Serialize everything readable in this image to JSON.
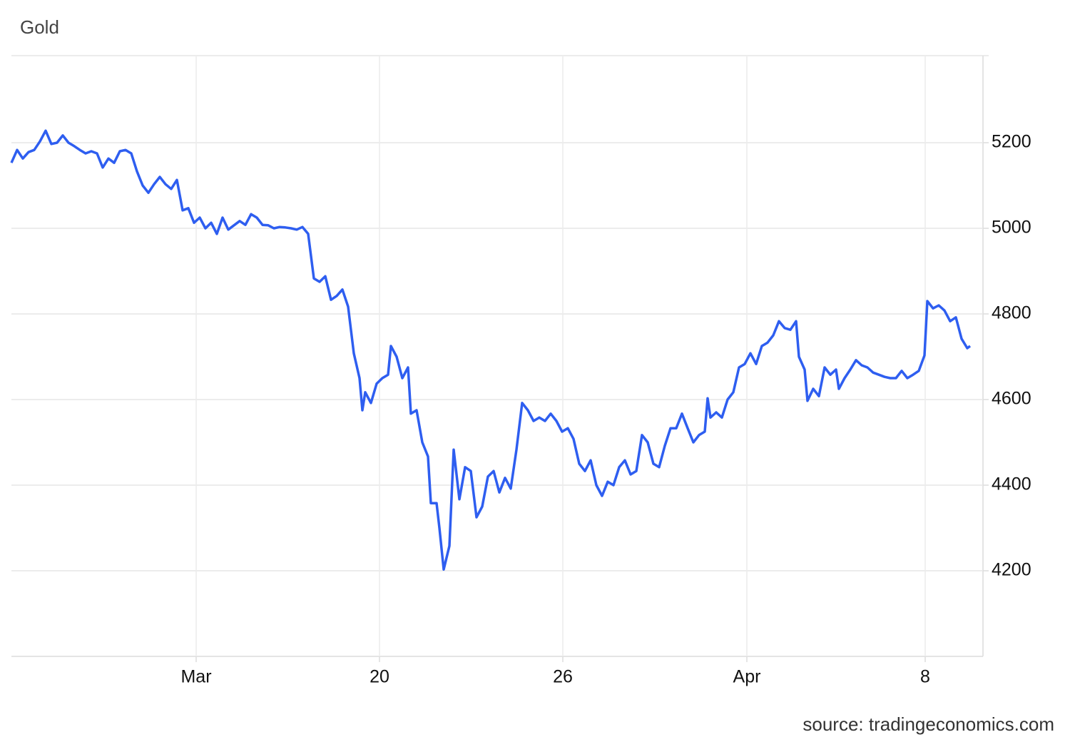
{
  "chart_data": {
    "type": "line",
    "title": "Gold",
    "source": "source: tradingeconomics.com",
    "x": [
      0,
      8,
      16,
      24,
      32,
      40,
      48,
      56,
      64,
      72,
      80,
      88,
      96,
      104,
      112,
      120,
      128,
      136,
      144,
      152,
      160,
      168,
      176,
      184,
      192,
      200,
      208,
      216,
      224,
      232,
      240,
      248,
      256,
      264,
      272,
      280,
      288,
      296,
      304,
      312,
      320,
      328,
      336,
      344,
      352,
      360,
      368,
      376,
      384,
      392,
      400,
      408,
      416,
      424,
      432,
      440,
      448,
      456,
      464,
      472,
      480,
      488,
      492,
      496,
      504,
      512,
      520,
      528,
      532,
      540,
      548,
      556,
      560,
      568,
      576,
      584,
      588,
      596,
      600,
      606,
      614,
      620,
      628,
      636,
      644,
      652,
      660,
      668,
      676,
      684,
      692,
      700,
      708,
      716,
      724,
      732,
      740,
      748,
      756,
      764,
      772,
      780,
      788,
      796,
      804,
      812,
      820,
      828,
      836,
      844,
      852,
      860,
      868,
      876,
      884,
      892,
      900,
      908,
      916,
      924,
      932,
      940,
      948,
      956,
      964,
      972,
      976,
      980,
      988,
      996,
      1004,
      1012,
      1020,
      1028,
      1036,
      1044,
      1052,
      1060,
      1068,
      1076,
      1084,
      1092,
      1100,
      1104,
      1112,
      1116,
      1124,
      1132,
      1140,
      1148,
      1156,
      1160,
      1168,
      1176,
      1184,
      1192,
      1200,
      1208,
      1216,
      1224,
      1232,
      1240,
      1248,
      1256,
      1264,
      1272,
      1280,
      1284,
      1292,
      1300,
      1308,
      1316,
      1324,
      1332,
      1340,
      1344
    ],
    "series": [
      {
        "name": "Gold",
        "color": "#2e5ef0",
        "values": [
          5153,
          5183,
          5163,
          5178,
          5183,
          5203,
          5228,
          5197,
          5200,
          5217,
          5200,
          5192,
          5183,
          5175,
          5180,
          5175,
          5142,
          5163,
          5153,
          5180,
          5183,
          5175,
          5133,
          5100,
          5083,
          5103,
          5120,
          5103,
          5092,
          5113,
          5042,
          5047,
          5013,
          5025,
          5000,
          5013,
          4987,
          5025,
          4997,
          5007,
          5017,
          5008,
          5033,
          5025,
          5008,
          5007,
          5000,
          5003,
          5002,
          5000,
          4997,
          5003,
          4987,
          4883,
          4875,
          4888,
          4833,
          4842,
          4857,
          4817,
          4708,
          4650,
          4575,
          4617,
          4592,
          4637,
          4650,
          4658,
          4725,
          4700,
          4650,
          4675,
          4567,
          4575,
          4500,
          4467,
          4358,
          4358,
          4300,
          4203,
          4258,
          4483,
          4367,
          4442,
          4433,
          4325,
          4350,
          4420,
          4433,
          4383,
          4417,
          4392,
          4483,
          4592,
          4575,
          4550,
          4558,
          4550,
          4567,
          4550,
          4525,
          4533,
          4508,
          4450,
          4433,
          4458,
          4400,
          4375,
          4408,
          4400,
          4442,
          4458,
          4425,
          4433,
          4517,
          4500,
          4450,
          4442,
          4492,
          4533,
          4533,
          4567,
          4533,
          4500,
          4517,
          4525,
          4603,
          4558,
          4570,
          4558,
          4600,
          4617,
          4675,
          4683,
          4708,
          4683,
          4725,
          4733,
          4750,
          4783,
          4767,
          4763,
          4783,
          4700,
          4670,
          4597,
          4625,
          4608,
          4675,
          4658,
          4670,
          4625,
          4650,
          4670,
          4692,
          4680,
          4675,
          4663,
          4658,
          4653,
          4650,
          4650,
          4667,
          4650,
          4658,
          4667,
          4703,
          4830,
          4813,
          4820,
          4808,
          4783,
          4792,
          4742,
          4720,
          4725
        ]
      }
    ],
    "xlim": [
      0,
      1362
    ],
    "xticks": [
      {
        "value": 259,
        "label": "Mar"
      },
      {
        "value": 516,
        "label": "20"
      },
      {
        "value": 773,
        "label": "26"
      },
      {
        "value": 1031,
        "label": "Apr"
      },
      {
        "value": 1281,
        "label": "8"
      }
    ],
    "ylim": [
      4000,
      5400
    ],
    "yticks": [
      4200,
      4400,
      4600,
      4800,
      5000,
      5200
    ],
    "grid": true
  }
}
